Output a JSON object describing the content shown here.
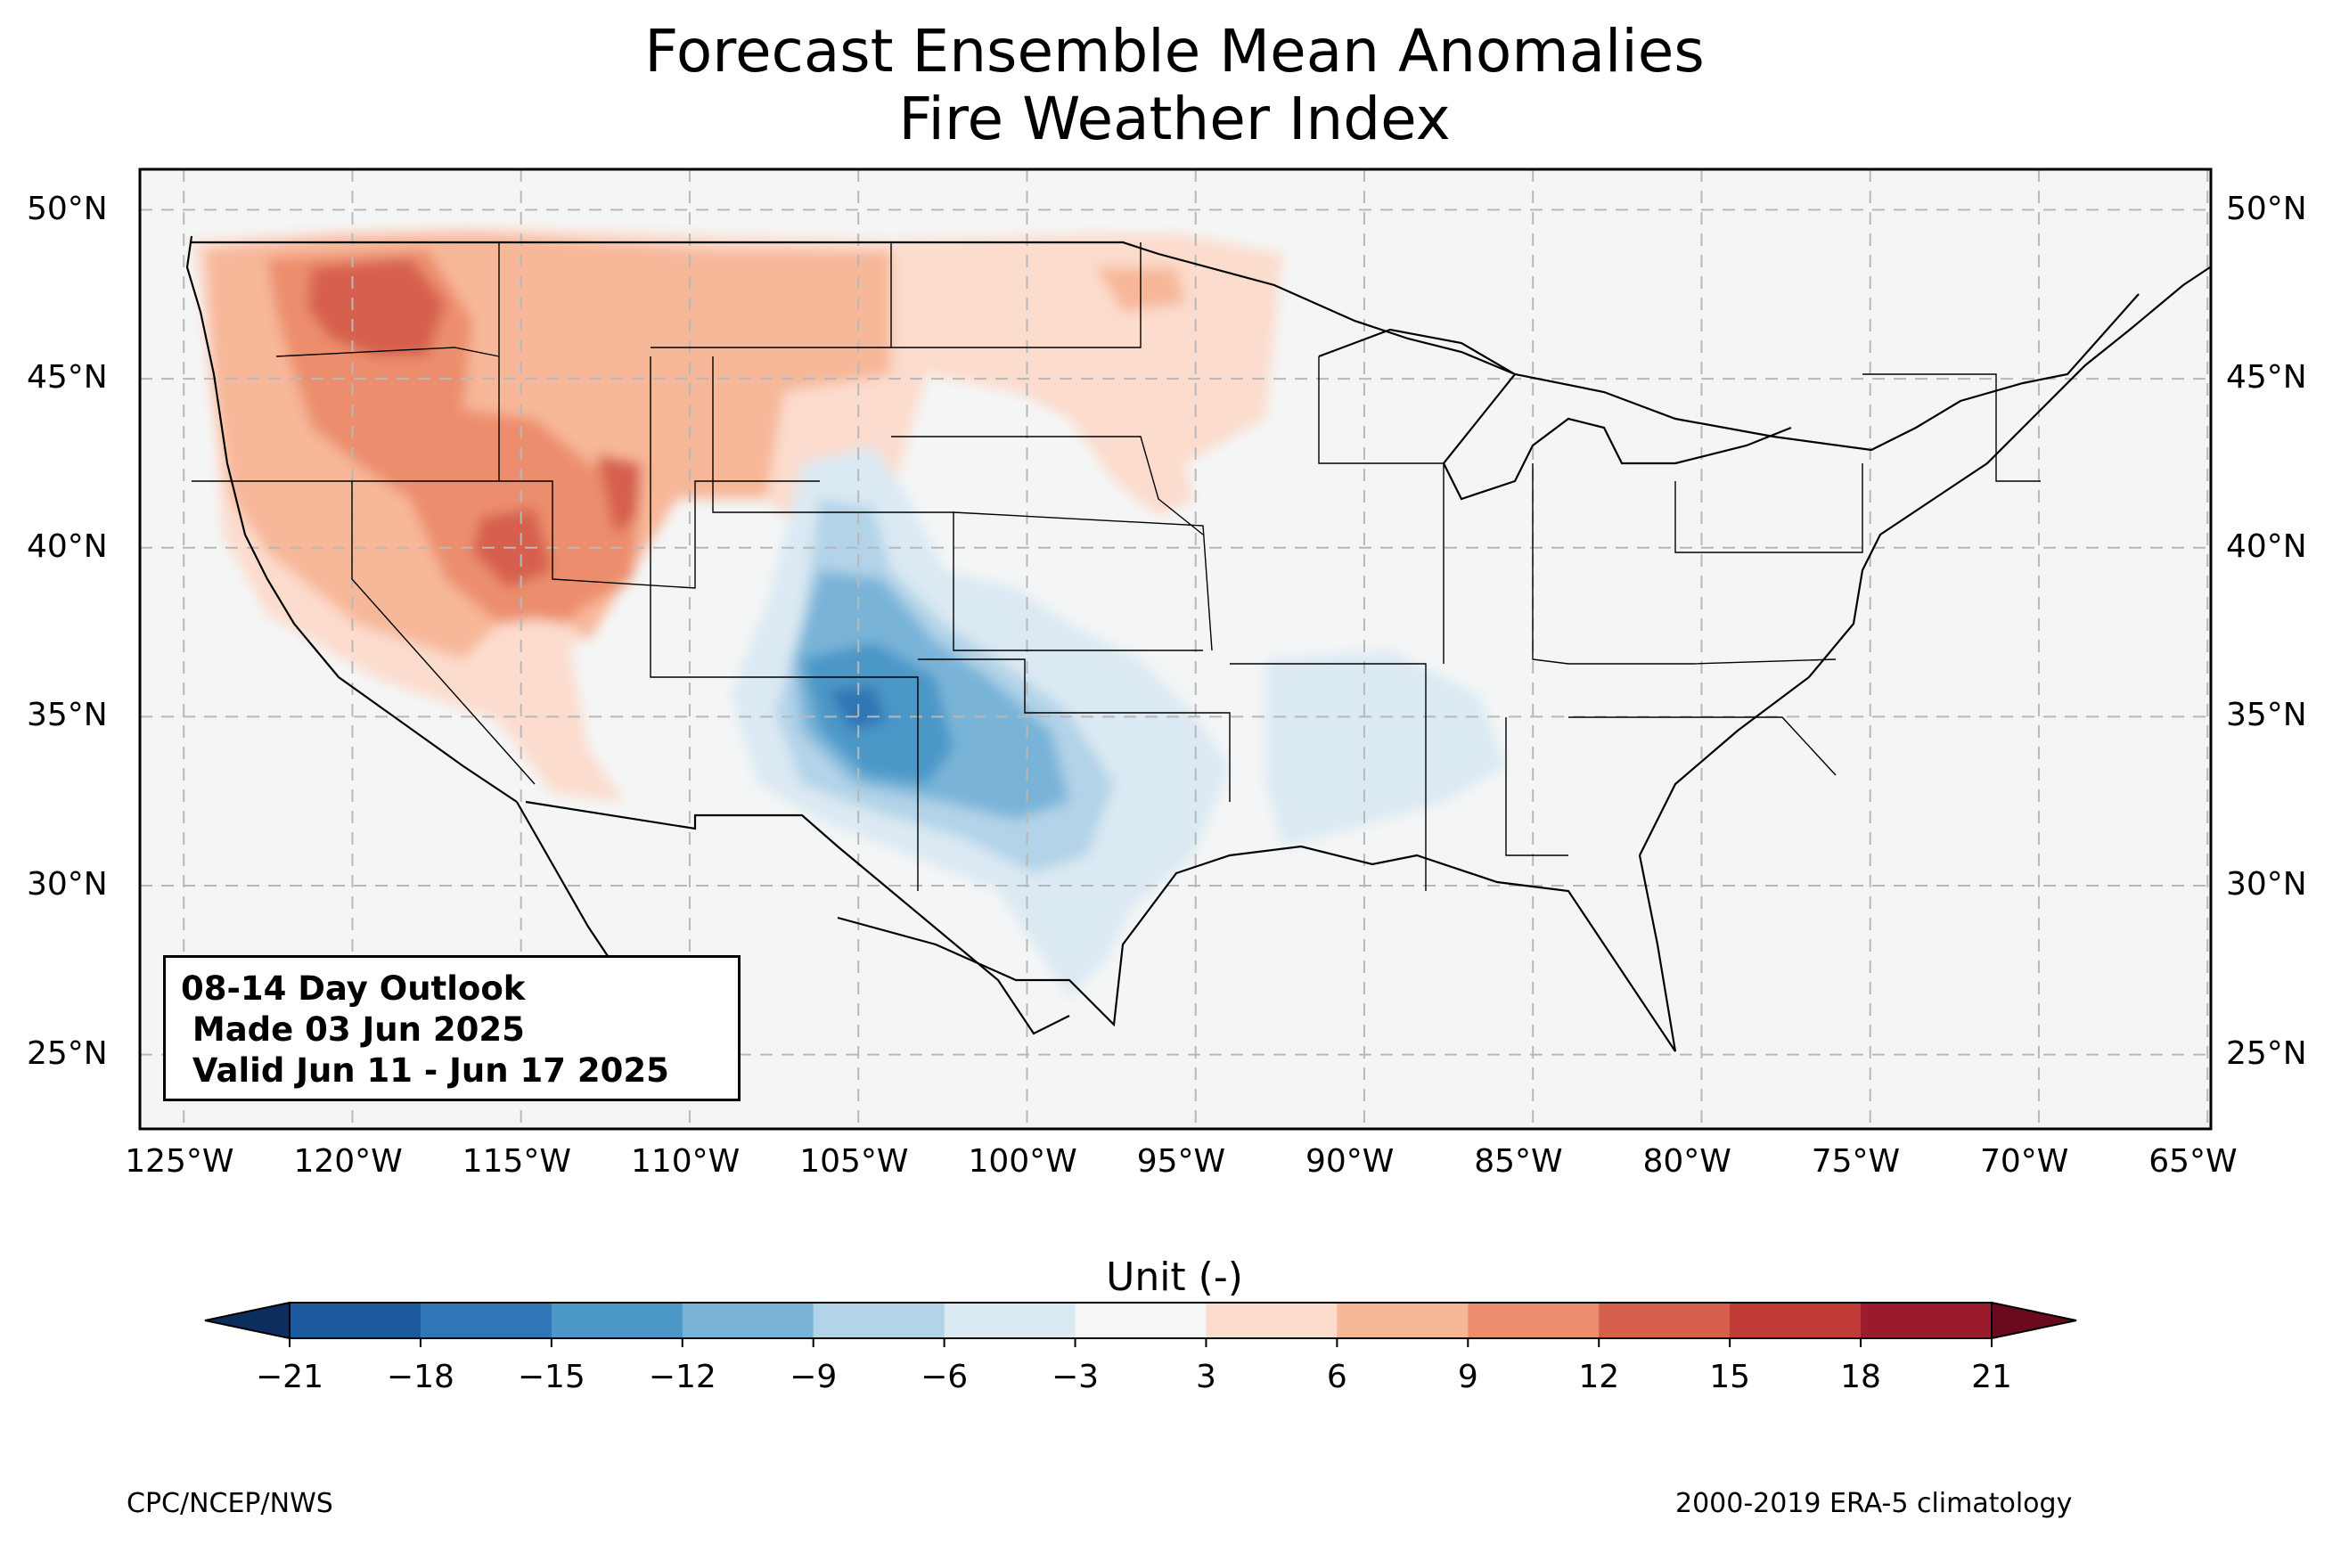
{
  "title_line1": "Forecast Ensemble Mean Anomalies",
  "title_line2": "Fire Weather Index",
  "lat_labels": [
    "50°N",
    "45°N",
    "40°N",
    "35°N",
    "30°N",
    "25°N"
  ],
  "lon_labels": [
    "125°W",
    "120°W",
    "115°W",
    "110°W",
    "105°W",
    "100°W",
    "95°W",
    "90°W",
    "85°W",
    "80°W",
    "75°W",
    "70°W",
    "65°W"
  ],
  "map_extent": {
    "lon": [
      -126.3,
      -64.9
    ],
    "lat": [
      22.8,
      51.2
    ]
  },
  "info_box": {
    "line1": "08-14 Day Outlook",
    "line2": " Made 03 Jun 2025",
    "line3": " Valid Jun 11 - Jun 17 2025"
  },
  "colorbar": {
    "title": "Unit (-)",
    "ticks": [
      "−21",
      "−18",
      "−15",
      "−12",
      "−9",
      "−6",
      "−3",
      "3",
      "6",
      "9",
      "12",
      "15",
      "18",
      "21"
    ],
    "colors": [
      "#1b5a9c",
      "#2f76b6",
      "#4b97c8",
      "#79b4d8",
      "#b2d3e8",
      "#dbe9f3",
      "#f6f6f6",
      "#fcdccd",
      "#f7b799",
      "#ec8e6d",
      "#d6604d",
      "#c03b36",
      "#9b1a2b"
    ],
    "under_color": "#0c2e5e",
    "over_color": "#6b0a1f"
  },
  "background_color": "#f4f6f6",
  "footer_left": "CPC/NCEP/NWS",
  "footer_right": "2000-2019 ERA-5 climatology"
}
